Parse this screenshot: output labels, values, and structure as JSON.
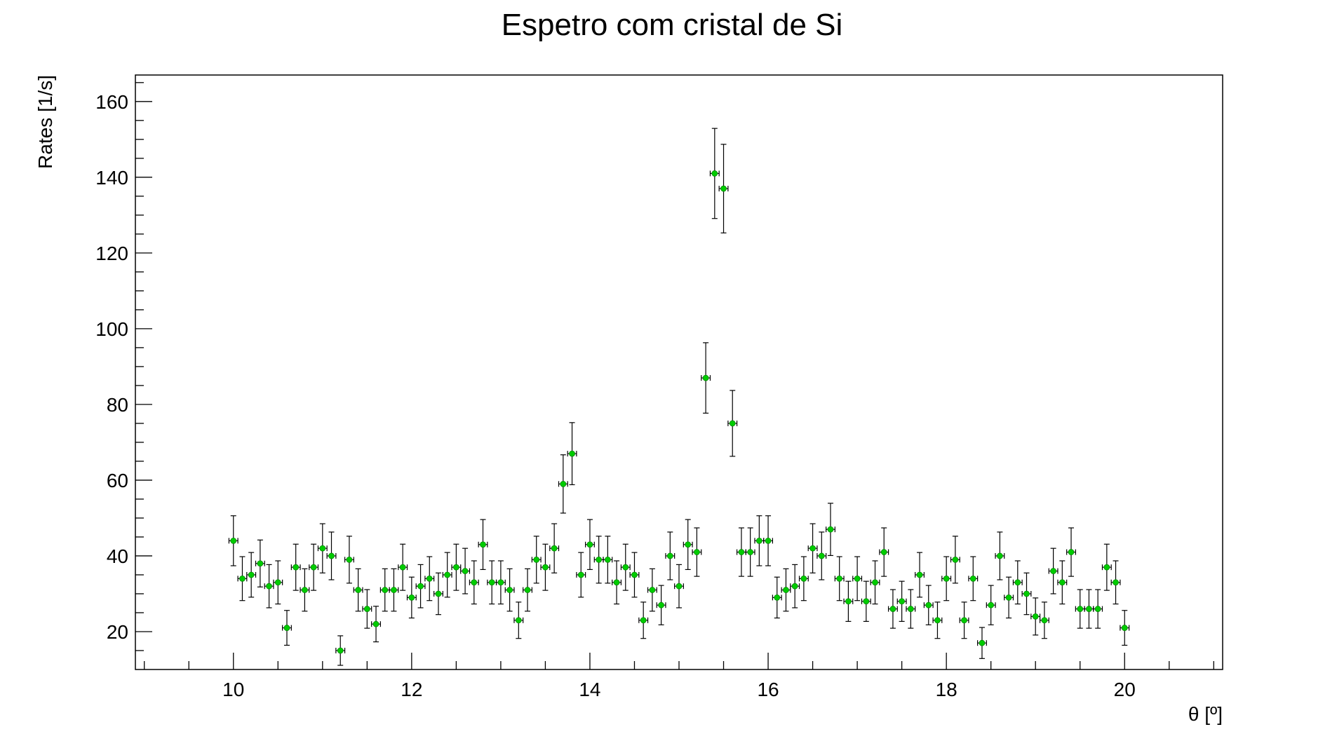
{
  "chart_data": {
    "type": "scatter",
    "title": "Espetro com cristal de Si",
    "xlabel": "θ [º]",
    "ylabel": "Rates [1/s]",
    "xlim": [
      8.9,
      21.1
    ],
    "ylim": [
      10,
      167
    ],
    "x_ticks": [
      "10",
      "12",
      "14",
      "16",
      "18",
      "20"
    ],
    "y_ticks": [
      "20",
      "40",
      "60",
      "80",
      "100",
      "120",
      "140",
      "160"
    ],
    "grid": false,
    "marker_color": "#00cc00",
    "error_bar_color": "#000000",
    "x_error": 0.05,
    "x": [
      10.0,
      10.1,
      10.2,
      10.3,
      10.4,
      10.5,
      10.6,
      10.7,
      10.8,
      10.9,
      11.0,
      11.1,
      11.2,
      11.3,
      11.4,
      11.5,
      11.6,
      11.7,
      11.8,
      11.9,
      12.0,
      12.1,
      12.2,
      12.3,
      12.4,
      12.5,
      12.6,
      12.7,
      12.8,
      12.9,
      13.0,
      13.1,
      13.2,
      13.3,
      13.4,
      13.5,
      13.6,
      13.7,
      13.8,
      13.9,
      14.0,
      14.1,
      14.2,
      14.3,
      14.4,
      14.5,
      14.6,
      14.7,
      14.8,
      14.9,
      15.0,
      15.1,
      15.2,
      15.3,
      15.4,
      15.5,
      15.6,
      15.7,
      15.8,
      15.9,
      16.0,
      16.1,
      16.2,
      16.3,
      16.4,
      16.5,
      16.6,
      16.7,
      16.8,
      16.9,
      17.0,
      17.1,
      17.2,
      17.3,
      17.4,
      17.5,
      17.6,
      17.7,
      17.8,
      17.9,
      18.0,
      18.1,
      18.2,
      18.3,
      18.4,
      18.5,
      18.6,
      18.7,
      18.8,
      18.9,
      19.0,
      19.1,
      19.2,
      19.3,
      19.4,
      19.5,
      19.6,
      19.7,
      19.8,
      19.9,
      20.0
    ],
    "y": [
      44,
      34,
      35,
      38,
      32,
      33,
      21,
      37,
      31,
      37,
      42,
      40,
      15,
      39,
      31,
      26,
      22,
      31,
      31,
      37,
      29,
      32,
      34,
      30,
      35,
      37,
      36,
      33,
      43,
      33,
      33,
      31,
      23,
      31,
      39,
      37,
      42,
      59,
      67,
      35,
      43,
      39,
      39,
      33,
      37,
      35,
      23,
      31,
      27,
      40,
      32,
      43,
      41,
      87,
      141,
      137,
      75,
      41,
      41,
      44,
      44,
      29,
      31,
      32,
      34,
      42,
      40,
      47,
      34,
      28,
      34,
      28,
      33,
      41,
      26,
      28,
      26,
      35,
      27,
      23,
      34,
      39,
      23,
      34,
      17,
      27,
      40,
      29,
      33,
      30,
      24,
      23,
      36,
      33,
      41,
      26,
      26,
      26,
      37,
      33,
      21
    ],
    "y_error": [
      6.6,
      5.8,
      5.9,
      6.2,
      5.7,
      5.7,
      4.6,
      6.1,
      5.6,
      6.1,
      6.5,
      6.3,
      3.9,
      6.2,
      5.6,
      5.1,
      4.7,
      5.6,
      5.6,
      6.1,
      5.4,
      5.7,
      5.8,
      5.5,
      5.9,
      6.1,
      6.0,
      5.7,
      6.6,
      5.7,
      5.7,
      5.6,
      4.8,
      5.6,
      6.2,
      6.1,
      6.5,
      7.7,
      8.2,
      5.9,
      6.6,
      6.2,
      6.2,
      5.7,
      6.1,
      5.9,
      4.8,
      5.6,
      5.2,
      6.3,
      5.7,
      6.6,
      6.4,
      9.3,
      11.9,
      11.7,
      8.7,
      6.4,
      6.4,
      6.6,
      6.6,
      5.4,
      5.6,
      5.7,
      5.8,
      6.5,
      6.3,
      6.9,
      5.8,
      5.3,
      5.8,
      5.3,
      5.7,
      6.4,
      5.1,
      5.3,
      5.1,
      5.9,
      5.2,
      4.8,
      5.8,
      6.2,
      4.8,
      5.8,
      4.1,
      5.2,
      6.3,
      5.4,
      5.7,
      5.5,
      4.9,
      4.8,
      6.0,
      5.7,
      6.4,
      5.1,
      5.1,
      5.1,
      6.1,
      5.7,
      4.6
    ]
  }
}
